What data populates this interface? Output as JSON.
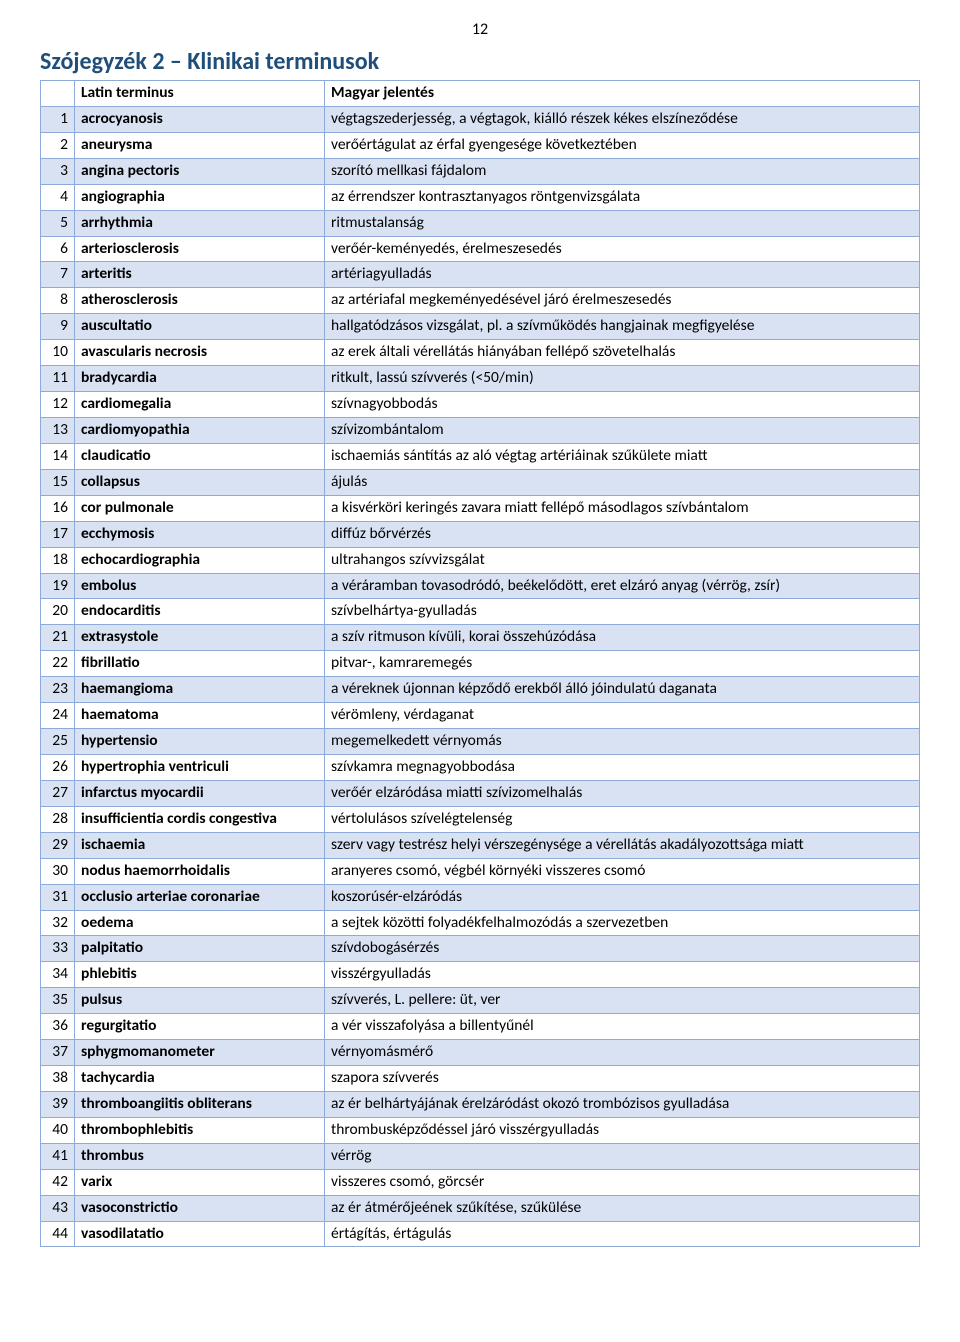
{
  "page_number": "12",
  "title": "Szójegyzék 2 – Klinikai terminusok",
  "title_color": "#1f4e79",
  "table": {
    "border_color": "#8eaadb",
    "row_alt_color": "#d9e2f3",
    "row_base_color": "#ffffff",
    "columns": [
      "",
      "Latin terminus",
      "Magyar jelentés"
    ],
    "rows": [
      [
        "1",
        "acrocyanosis",
        "végtagszederjesség, a végtagok, kiálló részek kékes elszíneződése"
      ],
      [
        "2",
        "aneurysma",
        "verőértágulat az érfal gyengesége következtében"
      ],
      [
        "3",
        "angina pectoris",
        "szorító mellkasi fájdalom"
      ],
      [
        "4",
        "angiographia",
        "az érrendszer kontrasztanyagos röntgenvizsgálata"
      ],
      [
        "5",
        "arrhythmia",
        "ritmustalanság"
      ],
      [
        "6",
        "arteriosclerosis",
        "verőér-keményedés, érelmeszesedés"
      ],
      [
        "7",
        "arteritis",
        "artériagyulladás"
      ],
      [
        "8",
        "atherosclerosis",
        "az artériafal megkeményedésével járó érelmeszesedés"
      ],
      [
        "9",
        "auscultatio",
        "hallgatódzásos vizsgálat, pl. a szívműködés hangjainak megfigyelése"
      ],
      [
        "10",
        "avascularis necrosis",
        "az erek általi vérellátás hiányában fellépő szövetelhalás"
      ],
      [
        "11",
        "bradycardia",
        "ritkult, lassú szívverés (<50/min)"
      ],
      [
        "12",
        "cardiomegalia",
        "szívnagyobbodás"
      ],
      [
        "13",
        "cardiomyopathia",
        "szívizombántalom"
      ],
      [
        "14",
        "claudicatio",
        "ischaemiás sántítás az aló végtag artériáinak szűkülete miatt"
      ],
      [
        "15",
        "collapsus",
        "ájulás"
      ],
      [
        "16",
        "cor pulmonale",
        "a kisvérköri keringés zavara miatt fellépő másodlagos szívbántalom"
      ],
      [
        "17",
        "ecchymosis",
        "diffúz bőrvérzés"
      ],
      [
        "18",
        "echocardiographia",
        "ultrahangos szívvizsgálat"
      ],
      [
        "19",
        "embolus",
        "a véráramban tovasodródó, beékelődött, eret elzáró anyag (vérrög, zsír)"
      ],
      [
        "20",
        "endocarditis",
        "szívbelhártya-gyulladás"
      ],
      [
        "21",
        "extrasystole",
        "a szív ritmuson kívüli, korai összehúzódása"
      ],
      [
        "22",
        "fibrillatio",
        "pitvar-, kamraremegés"
      ],
      [
        "23",
        "haemangioma",
        "a véreknek újonnan képződő erekből álló jóindulatú daganata"
      ],
      [
        "24",
        "haematoma",
        "vérömleny, vérdaganat"
      ],
      [
        "25",
        "hypertensio",
        "megemelkedett vérnyomás"
      ],
      [
        "26",
        "hypertrophia ventriculi",
        "szívkamra megnagyobbodása"
      ],
      [
        "27",
        "infarctus myocardii",
        "verőér elzáródása miatti szívizomelhalás"
      ],
      [
        "28",
        "insufficientia cordis congestiva",
        "vértolulásos szívelégtelenség"
      ],
      [
        "29",
        "ischaemia",
        "szerv vagy testrész helyi vérszegénysége a vérellátás akadályozottsága miatt"
      ],
      [
        "30",
        "nodus haemorrhoidalis",
        "aranyeres csomó, végbél környéki visszeres csomó"
      ],
      [
        "31",
        "occlusio arteriae coronariae",
        "koszorúsér-elzáródás"
      ],
      [
        "32",
        "oedema",
        "a sejtek közötti folyadékfelhalmozódás a szervezetben"
      ],
      [
        "33",
        "palpitatio",
        "szívdobogásérzés"
      ],
      [
        "34",
        "phlebitis",
        "visszérgyulladás"
      ],
      [
        "35",
        "pulsus",
        "szívverés, L. pellere: üt, ver"
      ],
      [
        "36",
        "regurgitatio",
        "a vér visszafolyása a billentyűnél"
      ],
      [
        "37",
        "sphygmomanometer",
        "vérnyomásmérő"
      ],
      [
        "38",
        "tachycardia",
        "szapora szívverés"
      ],
      [
        "39",
        "thromboangiitis obliterans",
        "az ér belhártyájának érelzáródást okozó trombózisos gyulladása"
      ],
      [
        "40",
        "thrombophlebitis",
        "thrombusképződéssel járó visszérgyulladás"
      ],
      [
        "41",
        "thrombus",
        "vérrög"
      ],
      [
        "42",
        "varix",
        "visszeres csomó, görcsér"
      ],
      [
        "43",
        "vasoconstrictio",
        "az ér átmérőjeének szűkítése, szűkülése"
      ],
      [
        "44",
        "vasodilatatio",
        "értágítás, értágulás"
      ]
    ]
  }
}
